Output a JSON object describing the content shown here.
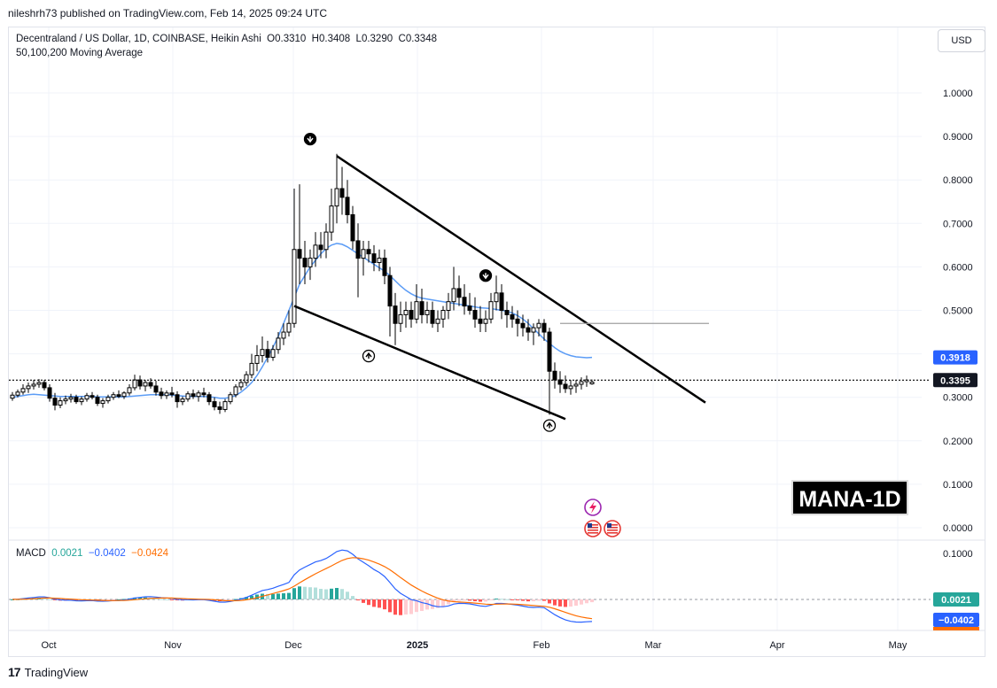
{
  "header": {
    "published_text": "nileshrh73 published on TradingView.com, Feb 14, 2025 09:24 UTC"
  },
  "legend": {
    "symbol_line": "Decentraland / US Dollar, 1D, COINBASE, Heikin Ashi",
    "ohlc": {
      "O": "O0.3310",
      "H": "H0.3408",
      "L": "L0.3290",
      "C": "C0.3348"
    },
    "ma_line": "50,100,200 Moving Average"
  },
  "currency_button": "USD",
  "watermark_label": "MANA-1D",
  "macd_legend": {
    "label": "MACD",
    "v1": "0.0021",
    "v2": "−0.0402",
    "v3": "−0.0424"
  },
  "footer": {
    "brand": "TradingView"
  },
  "chart_data": {
    "type": "candlestick",
    "style": "Heikin Ashi",
    "price_axis": {
      "ticks": [
        "1.0000",
        "0.9000",
        "0.8000",
        "0.7000",
        "0.6000",
        "0.5000",
        "0.4000",
        "0.3000",
        "0.2000",
        "0.1000",
        "0.0000"
      ],
      "ylim": [
        0.0,
        1.0
      ]
    },
    "time_axis": {
      "ticks": [
        "Oct",
        "Nov",
        "Dec",
        "2025",
        "Feb",
        "Mar",
        "Apr",
        "May"
      ]
    },
    "price_labels": [
      {
        "value": "0.3918",
        "color": "#2962ff"
      },
      {
        "value": "0.3395",
        "color": "#131722"
      }
    ],
    "current_price": 0.3395,
    "ma_last": 0.3918,
    "candles": [
      [
        0.298,
        0.312,
        0.292,
        0.305
      ],
      [
        0.305,
        0.318,
        0.3,
        0.312
      ],
      [
        0.312,
        0.33,
        0.306,
        0.32
      ],
      [
        0.32,
        0.334,
        0.31,
        0.326
      ],
      [
        0.326,
        0.34,
        0.318,
        0.33
      ],
      [
        0.33,
        0.342,
        0.322,
        0.334
      ],
      [
        0.334,
        0.34,
        0.316,
        0.322
      ],
      [
        0.322,
        0.33,
        0.29,
        0.298
      ],
      [
        0.298,
        0.31,
        0.27,
        0.282
      ],
      [
        0.282,
        0.3,
        0.275,
        0.292
      ],
      [
        0.292,
        0.304,
        0.284,
        0.296
      ],
      [
        0.296,
        0.308,
        0.288,
        0.3
      ],
      [
        0.3,
        0.306,
        0.285,
        0.29
      ],
      [
        0.29,
        0.302,
        0.282,
        0.296
      ],
      [
        0.296,
        0.31,
        0.29,
        0.304
      ],
      [
        0.304,
        0.312,
        0.295,
        0.3
      ],
      [
        0.3,
        0.306,
        0.28,
        0.286
      ],
      [
        0.286,
        0.298,
        0.276,
        0.292
      ],
      [
        0.292,
        0.306,
        0.286,
        0.3
      ],
      [
        0.3,
        0.312,
        0.294,
        0.306
      ],
      [
        0.306,
        0.316,
        0.298,
        0.302
      ],
      [
        0.302,
        0.314,
        0.296,
        0.31
      ],
      [
        0.31,
        0.33,
        0.304,
        0.322
      ],
      [
        0.322,
        0.352,
        0.316,
        0.34
      ],
      [
        0.34,
        0.35,
        0.318,
        0.326
      ],
      [
        0.326,
        0.34,
        0.314,
        0.334
      ],
      [
        0.334,
        0.344,
        0.32,
        0.326
      ],
      [
        0.326,
        0.338,
        0.304,
        0.312
      ],
      [
        0.312,
        0.322,
        0.296,
        0.304
      ],
      [
        0.304,
        0.316,
        0.296,
        0.31
      ],
      [
        0.31,
        0.324,
        0.3,
        0.306
      ],
      [
        0.306,
        0.314,
        0.276,
        0.29
      ],
      [
        0.29,
        0.302,
        0.282,
        0.296
      ],
      [
        0.296,
        0.314,
        0.29,
        0.308
      ],
      [
        0.308,
        0.318,
        0.296,
        0.302
      ],
      [
        0.302,
        0.316,
        0.29,
        0.31
      ],
      [
        0.31,
        0.322,
        0.3,
        0.306
      ],
      [
        0.306,
        0.312,
        0.282,
        0.29
      ],
      [
        0.29,
        0.3,
        0.27,
        0.278
      ],
      [
        0.278,
        0.29,
        0.262,
        0.272
      ],
      [
        0.272,
        0.296,
        0.266,
        0.29
      ],
      [
        0.29,
        0.312,
        0.284,
        0.306
      ],
      [
        0.306,
        0.33,
        0.3,
        0.324
      ],
      [
        0.324,
        0.342,
        0.316,
        0.334
      ],
      [
        0.334,
        0.36,
        0.326,
        0.352
      ],
      [
        0.352,
        0.4,
        0.344,
        0.378
      ],
      [
        0.378,
        0.42,
        0.36,
        0.396
      ],
      [
        0.396,
        0.44,
        0.38,
        0.41
      ],
      [
        0.41,
        0.43,
        0.38,
        0.392
      ],
      [
        0.392,
        0.42,
        0.384,
        0.41
      ],
      [
        0.41,
        0.45,
        0.4,
        0.436
      ],
      [
        0.436,
        0.47,
        0.42,
        0.45
      ],
      [
        0.45,
        0.5,
        0.44,
        0.47
      ],
      [
        0.47,
        0.78,
        0.46,
        0.64
      ],
      [
        0.64,
        0.79,
        0.56,
        0.62
      ],
      [
        0.62,
        0.66,
        0.56,
        0.6
      ],
      [
        0.6,
        0.64,
        0.57,
        0.62
      ],
      [
        0.62,
        0.68,
        0.6,
        0.65
      ],
      [
        0.65,
        0.68,
        0.62,
        0.64
      ],
      [
        0.64,
        0.7,
        0.62,
        0.68
      ],
      [
        0.68,
        0.78,
        0.66,
        0.74
      ],
      [
        0.74,
        0.86,
        0.7,
        0.78
      ],
      [
        0.78,
        0.83,
        0.72,
        0.76
      ],
      [
        0.76,
        0.8,
        0.7,
        0.72
      ],
      [
        0.72,
        0.74,
        0.64,
        0.66
      ],
      [
        0.66,
        0.7,
        0.53,
        0.62
      ],
      [
        0.62,
        0.66,
        0.58,
        0.64
      ],
      [
        0.64,
        0.66,
        0.61,
        0.63
      ],
      [
        0.63,
        0.65,
        0.59,
        0.61
      ],
      [
        0.61,
        0.64,
        0.59,
        0.62
      ],
      [
        0.62,
        0.64,
        0.56,
        0.58
      ],
      [
        0.58,
        0.6,
        0.44,
        0.51
      ],
      [
        0.51,
        0.54,
        0.42,
        0.47
      ],
      [
        0.47,
        0.52,
        0.45,
        0.49
      ],
      [
        0.49,
        0.52,
        0.46,
        0.5
      ],
      [
        0.5,
        0.52,
        0.46,
        0.48
      ],
      [
        0.48,
        0.56,
        0.47,
        0.52
      ],
      [
        0.52,
        0.55,
        0.47,
        0.49
      ],
      [
        0.49,
        0.52,
        0.47,
        0.5
      ],
      [
        0.5,
        0.52,
        0.46,
        0.47
      ],
      [
        0.47,
        0.5,
        0.45,
        0.48
      ],
      [
        0.48,
        0.51,
        0.46,
        0.5
      ],
      [
        0.5,
        0.54,
        0.48,
        0.52
      ],
      [
        0.52,
        0.6,
        0.5,
        0.55
      ],
      [
        0.55,
        0.58,
        0.51,
        0.53
      ],
      [
        0.53,
        0.56,
        0.49,
        0.51
      ],
      [
        0.51,
        0.54,
        0.49,
        0.5
      ],
      [
        0.5,
        0.53,
        0.46,
        0.48
      ],
      [
        0.48,
        0.51,
        0.45,
        0.47
      ],
      [
        0.47,
        0.5,
        0.45,
        0.48
      ],
      [
        0.48,
        0.54,
        0.47,
        0.52
      ],
      [
        0.52,
        0.58,
        0.5,
        0.54
      ],
      [
        0.54,
        0.56,
        0.48,
        0.5
      ],
      [
        0.5,
        0.52,
        0.46,
        0.49
      ],
      [
        0.49,
        0.51,
        0.46,
        0.48
      ],
      [
        0.48,
        0.5,
        0.44,
        0.47
      ],
      [
        0.47,
        0.49,
        0.44,
        0.46
      ],
      [
        0.46,
        0.48,
        0.43,
        0.45
      ],
      [
        0.45,
        0.47,
        0.42,
        0.46
      ],
      [
        0.46,
        0.48,
        0.44,
        0.47
      ],
      [
        0.47,
        0.48,
        0.43,
        0.45
      ],
      [
        0.45,
        0.46,
        0.26,
        0.36
      ],
      [
        0.36,
        0.38,
        0.32,
        0.34
      ],
      [
        0.34,
        0.36,
        0.31,
        0.33
      ],
      [
        0.33,
        0.35,
        0.31,
        0.32
      ],
      [
        0.32,
        0.34,
        0.306,
        0.326
      ],
      [
        0.326,
        0.34,
        0.31,
        0.33
      ],
      [
        0.33,
        0.346,
        0.318,
        0.336
      ],
      [
        0.336,
        0.35,
        0.324,
        0.34
      ],
      [
        0.331,
        0.341,
        0.329,
        0.335
      ]
    ],
    "moving_average": [
      0.3,
      0.302,
      0.304,
      0.306,
      0.307,
      0.306,
      0.305,
      0.304,
      0.303,
      0.302,
      0.302,
      0.302,
      0.302,
      0.302,
      0.302,
      0.302,
      0.301,
      0.301,
      0.301,
      0.301,
      0.301,
      0.301,
      0.302,
      0.303,
      0.304,
      0.305,
      0.306,
      0.306,
      0.306,
      0.306,
      0.305,
      0.304,
      0.303,
      0.302,
      0.302,
      0.302,
      0.302,
      0.301,
      0.3,
      0.298,
      0.298,
      0.3,
      0.304,
      0.312,
      0.322,
      0.334,
      0.35,
      0.37,
      0.392,
      0.415,
      0.44,
      0.47,
      0.5,
      0.53,
      0.56,
      0.58,
      0.6,
      0.615,
      0.63,
      0.642,
      0.65,
      0.654,
      0.652,
      0.646,
      0.638,
      0.63,
      0.622,
      0.614,
      0.606,
      0.598,
      0.59,
      0.58,
      0.568,
      0.556,
      0.546,
      0.538,
      0.532,
      0.528,
      0.526,
      0.524,
      0.522,
      0.52,
      0.518,
      0.516,
      0.514,
      0.512,
      0.51,
      0.508,
      0.506,
      0.505,
      0.504,
      0.502,
      0.5,
      0.498,
      0.494,
      0.488,
      0.48,
      0.47,
      0.458,
      0.446,
      0.434,
      0.424,
      0.414,
      0.406,
      0.4,
      0.396,
      0.393,
      0.392,
      0.391,
      0.3918
    ],
    "ma_x_fraction_start": 0.0,
    "drawings": {
      "upper_trendline": [
        [
          0.855,
          61
        ],
        [
          0.3,
          129
        ]
      ],
      "lower_trendline": [
        [
          0.51,
          53
        ],
        [
          0.25,
          104
        ]
      ],
      "horizontal_level": [
        0.47,
        103,
        131
      ]
    },
    "macd": {
      "ylim": [
        -0.06,
        0.11
      ],
      "tick": "0.1000",
      "value_labels": [
        {
          "value": "0.0021",
          "color": "#26a69a"
        },
        {
          "value": "−0.0402",
          "color": "#2962ff"
        }
      ]
    }
  }
}
